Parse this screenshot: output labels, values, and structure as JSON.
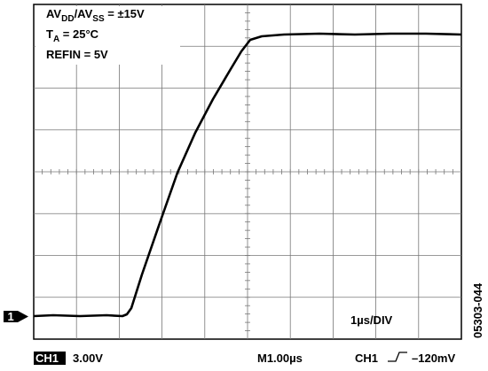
{
  "scope": {
    "annotation": {
      "line1": [
        "AV",
        "DD",
        "/AV",
        "SS",
        " = ±15V"
      ],
      "line2": [
        "T",
        "A",
        " = 25°C"
      ],
      "line3": "REFIN = 5V"
    },
    "timebase_label": "1µs/DIV",
    "channel_marker": "1",
    "footer": {
      "channel": "CH1",
      "scale": "3.00V",
      "time": "M1.00µs",
      "trigger_source": "CH1",
      "trigger_level": "–120mV"
    },
    "figure_id": "05303-044"
  }
}
